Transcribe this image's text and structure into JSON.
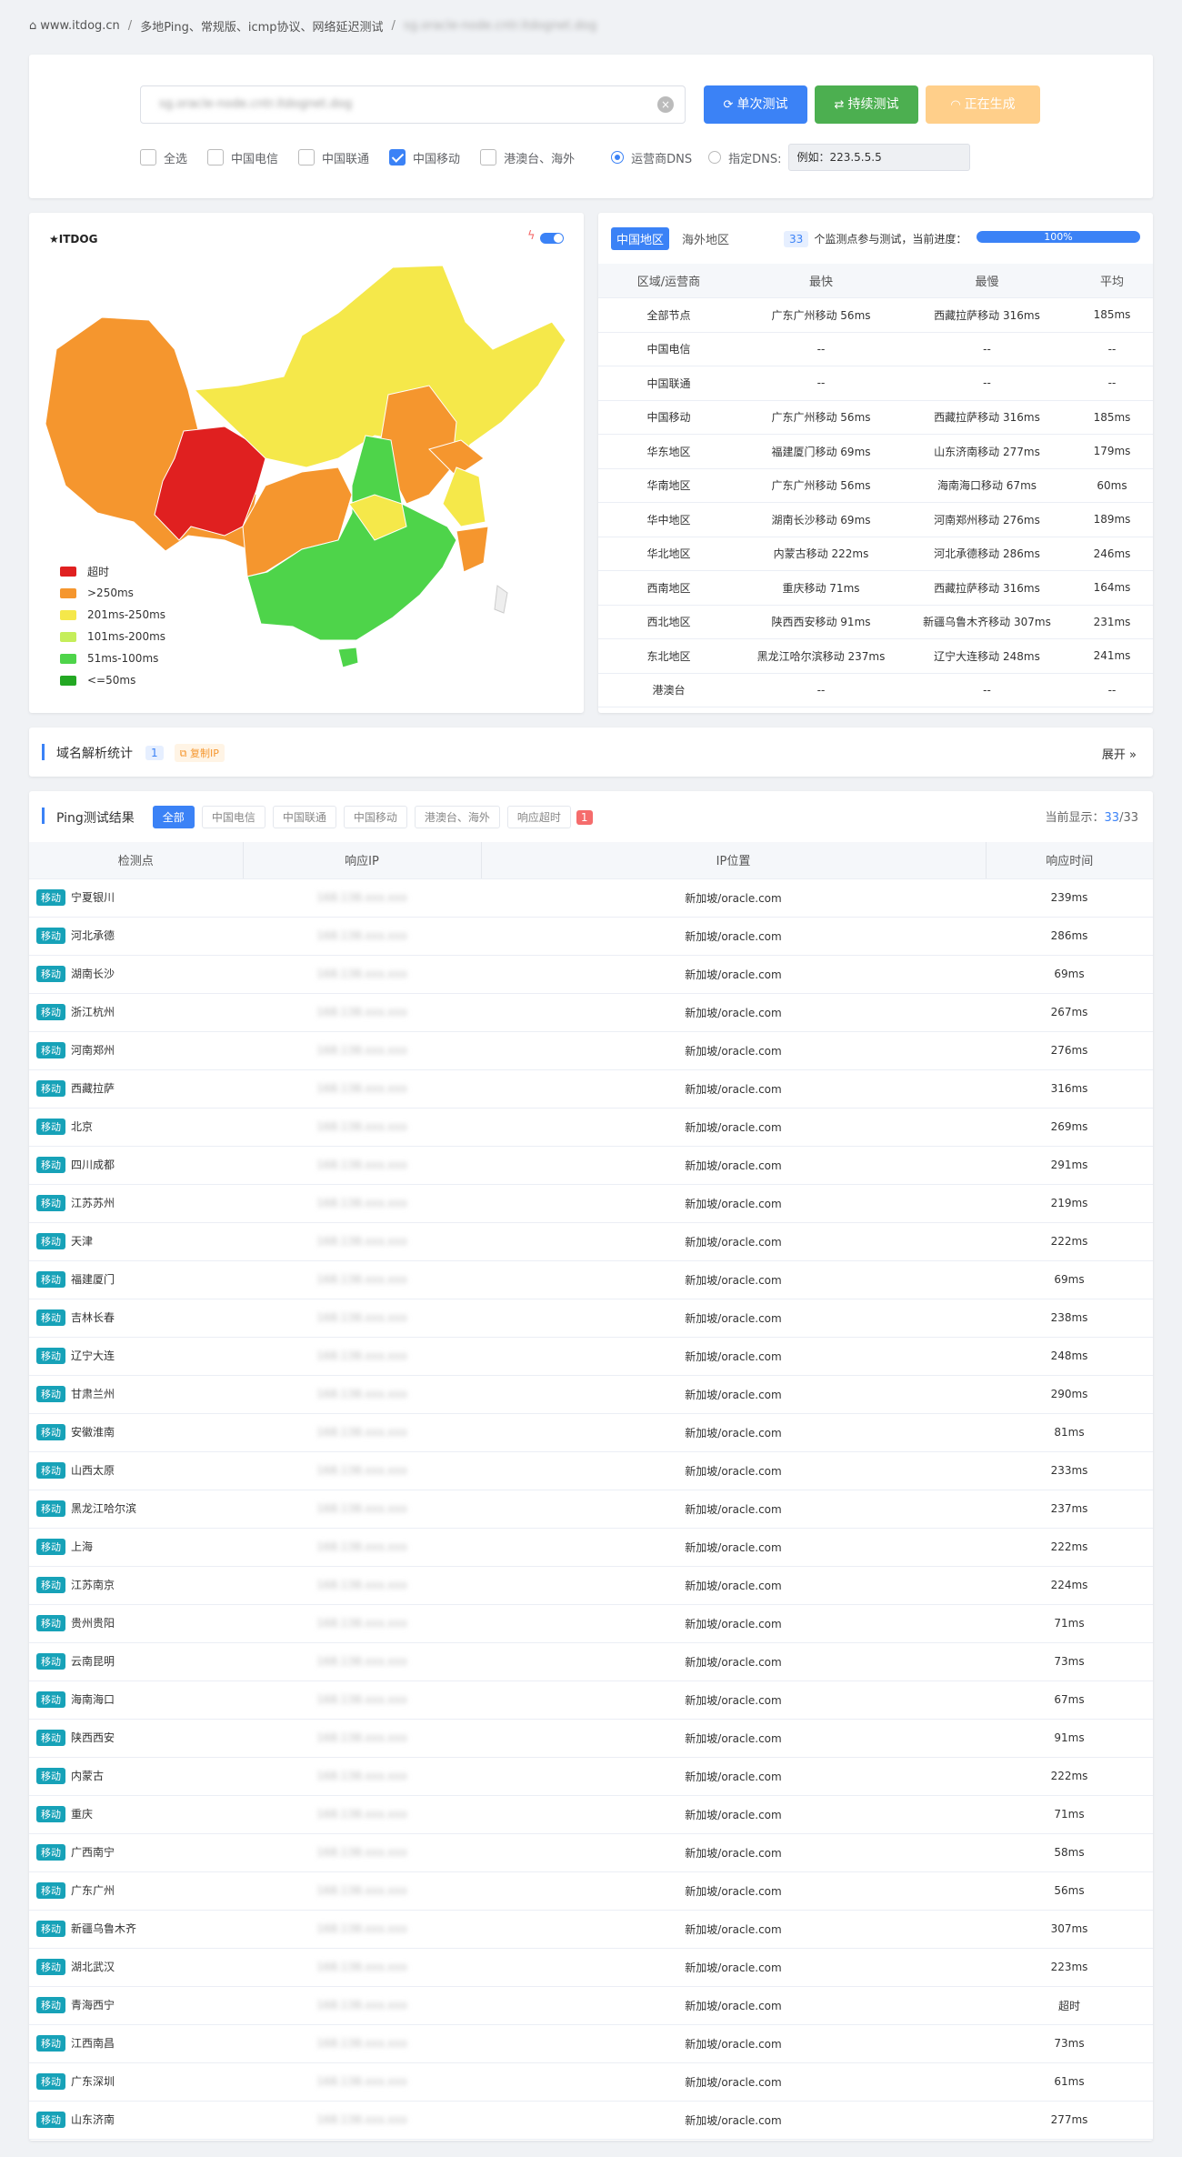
{
  "breadcrumb": {
    "home": "www.itdog.cn",
    "page": "多地Ping、常规版、icmp协议、网络延迟测试",
    "target": "sg.oracle-node.cntr.itdognet.dog"
  },
  "search": {
    "value": "sg.oracle-node.cntr.itdognet.dog",
    "clear_icon": "close-circle-icon"
  },
  "buttons": {
    "single": "单次测试",
    "continuous": "持续测试",
    "generating": "正在生成"
  },
  "colors": {
    "single": "#3b82f6",
    "continuous": "#4caf50",
    "generating": "#ffcf8a",
    "accent": "#3b82f6"
  },
  "filters": [
    {
      "label": "全选",
      "checked": false
    },
    {
      "label": "中国电信",
      "checked": false
    },
    {
      "label": "中国联通",
      "checked": false
    },
    {
      "label": "中国移动",
      "checked": true
    },
    {
      "label": "港澳台、海外",
      "checked": false
    }
  ],
  "dns": {
    "isp": "运营商DNS",
    "custom": "指定DNS:",
    "placeholder": "例如：223.5.5.5"
  },
  "map": {
    "logo": "ITDOG",
    "legend": [
      {
        "label": "超时",
        "color": "#e02020"
      },
      {
        "label": ">250ms",
        "color": "#f5962e"
      },
      {
        "label": "201ms-250ms",
        "color": "#f5e84a"
      },
      {
        "label": "101ms-200ms",
        "color": "#c5ee5a"
      },
      {
        "label": "51ms-100ms",
        "color": "#4ed44a"
      },
      {
        "label": "<=50ms",
        "color": "#23a823"
      }
    ]
  },
  "summary": {
    "tab_cn": "中国地区",
    "tab_overseas": "海外地区",
    "count": "33",
    "count_text": "个监测点参与测试，当前进度：",
    "progress_text": "100%",
    "progress": 1.0,
    "headers": [
      "区域/运营商",
      "最快",
      "最慢",
      "平均"
    ],
    "rows": [
      [
        "全部节点",
        "广东广州移动 56ms",
        "西藏拉萨移动 316ms",
        "185ms"
      ],
      [
        "中国电信",
        "--",
        "--",
        "--"
      ],
      [
        "中国联通",
        "--",
        "--",
        "--"
      ],
      [
        "中国移动",
        "广东广州移动 56ms",
        "西藏拉萨移动 316ms",
        "185ms"
      ],
      [
        "华东地区",
        "福建厦门移动 69ms",
        "山东济南移动 277ms",
        "179ms"
      ],
      [
        "华南地区",
        "广东广州移动 56ms",
        "海南海口移动 67ms",
        "60ms"
      ],
      [
        "华中地区",
        "湖南长沙移动 69ms",
        "河南郑州移动 276ms",
        "189ms"
      ],
      [
        "华北地区",
        "内蒙古移动 222ms",
        "河北承德移动 286ms",
        "246ms"
      ],
      [
        "西南地区",
        "重庆移动 71ms",
        "西藏拉萨移动 316ms",
        "164ms"
      ],
      [
        "西北地区",
        "陕西西安移动 91ms",
        "新疆乌鲁木齐移动 307ms",
        "231ms"
      ],
      [
        "东北地区",
        "黑龙江哈尔滨移动 237ms",
        "辽宁大连移动 248ms",
        "241ms"
      ],
      [
        "港澳台",
        "--",
        "--",
        "--"
      ]
    ]
  },
  "dns_stats": {
    "title": "域名解析统计",
    "count": "1",
    "copy": "复制IP",
    "expand": "展开"
  },
  "ping": {
    "title": "Ping测试结果",
    "tabs": [
      "全部",
      "中国电信",
      "中国联通",
      "中国移动",
      "港澳台、海外",
      "响应超时"
    ],
    "timeout_count": "1",
    "display_label": "当前显示：",
    "shown": "33",
    "total": "33",
    "headers": [
      "检测点",
      "响应IP",
      "IP位置",
      "响应时间"
    ],
    "isp_tag": "移动",
    "ip": "168.138.xxx.xxx",
    "location": "新加坡/oracle.com",
    "rows": [
      [
        "宁夏银川",
        "239ms"
      ],
      [
        "河北承德",
        "286ms"
      ],
      [
        "湖南长沙",
        "69ms"
      ],
      [
        "浙江杭州",
        "267ms"
      ],
      [
        "河南郑州",
        "276ms"
      ],
      [
        "西藏拉萨",
        "316ms"
      ],
      [
        "北京",
        "269ms"
      ],
      [
        "四川成都",
        "291ms"
      ],
      [
        "江苏苏州",
        "219ms"
      ],
      [
        "天津",
        "222ms"
      ],
      [
        "福建厦门",
        "69ms"
      ],
      [
        "吉林长春",
        "238ms"
      ],
      [
        "辽宁大连",
        "248ms"
      ],
      [
        "甘肃兰州",
        "290ms"
      ],
      [
        "安徽淮南",
        "81ms"
      ],
      [
        "山西太原",
        "233ms"
      ],
      [
        "黑龙江哈尔滨",
        "237ms"
      ],
      [
        "上海",
        "222ms"
      ],
      [
        "江苏南京",
        "224ms"
      ],
      [
        "贵州贵阳",
        "71ms"
      ],
      [
        "云南昆明",
        "73ms"
      ],
      [
        "海南海口",
        "67ms"
      ],
      [
        "陕西西安",
        "91ms"
      ],
      [
        "内蒙古",
        "222ms"
      ],
      [
        "重庆",
        "71ms"
      ],
      [
        "广西南宁",
        "58ms"
      ],
      [
        "广东广州",
        "56ms"
      ],
      [
        "新疆乌鲁木齐",
        "307ms"
      ],
      [
        "湖北武汉",
        "223ms"
      ],
      [
        "青海西宁",
        "超时"
      ],
      [
        "江西南昌",
        "73ms"
      ],
      [
        "广东深圳",
        "61ms"
      ],
      [
        "山东济南",
        "277ms"
      ]
    ]
  }
}
